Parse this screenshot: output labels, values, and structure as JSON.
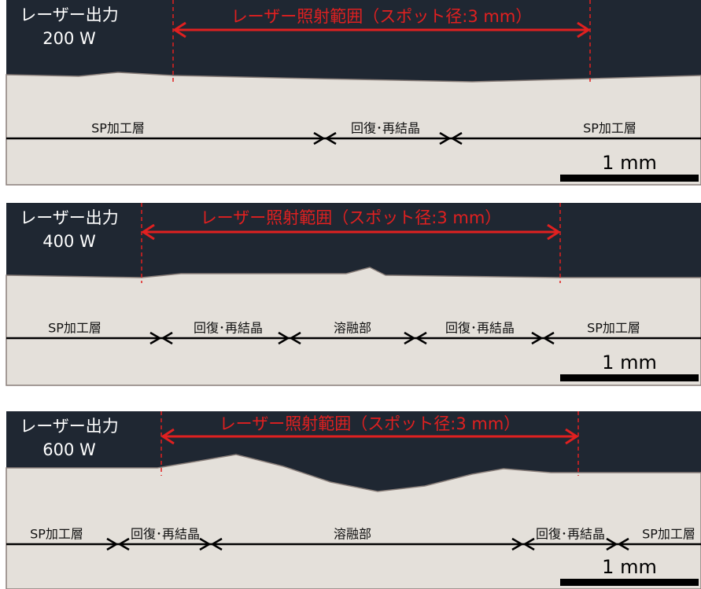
{
  "panels": [
    {
      "power": [
        "レーザー出力",
        "200 W"
      ],
      "irradiation": "レーザー照射範囲（スポット径:3 mm）",
      "zones": [
        "SP加工層",
        "回復･再結晶",
        "SP加工層"
      ],
      "scale": "1 mm"
    },
    {
      "power": [
        "レーザー出力",
        "400 W"
      ],
      "irradiation": "レーザー照射範囲（スポット径:3 mm）",
      "zones": [
        "SP加工層",
        "回復･再結晶",
        "溶融部",
        "回復･再結晶",
        "SP加工層"
      ],
      "scale": "1 mm"
    },
    {
      "power": [
        "レーザー出力",
        "600 W"
      ],
      "irradiation": "レーザー照射範囲（スポット径:3 mm）",
      "zones": [
        "SP加工層",
        "回復･再結晶",
        "溶融部",
        "回復･再結晶",
        "SP加工層"
      ],
      "scale": "1 mm"
    }
  ]
}
